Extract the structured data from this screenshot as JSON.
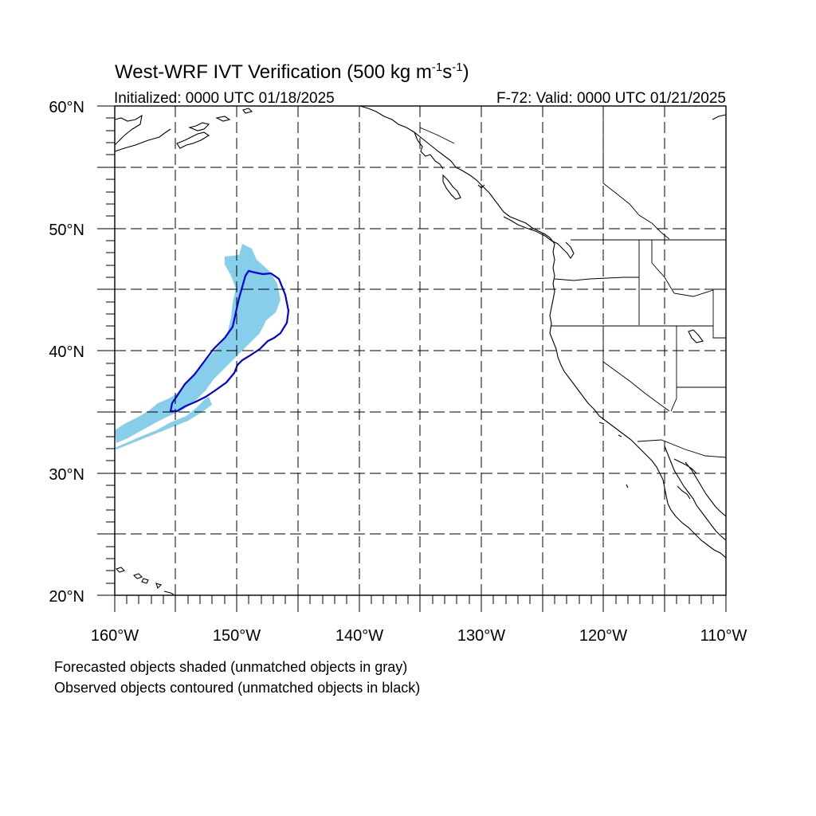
{
  "title": "West-WRF IVT Verification (500 kg m",
  "title_sup1": "-1",
  "title_mid": "s",
  "title_sup2": "-1",
  "title_end": ")",
  "init_label": "Initialized: 0000 UTC 01/18/2025",
  "valid_label": "F-72: Valid: 0000 UTC 01/21/2025",
  "lat_labels": [
    "60°N",
    "50°N",
    "40°N",
    "30°N",
    "20°N"
  ],
  "lon_labels": [
    "160°W",
    "150°W",
    "140°W",
    "130°W",
    "120°W",
    "110°W"
  ],
  "footnote_1": "Forecasted objects shaded (unmatched objects in gray)",
  "footnote_2": "Observed objects contoured (unmatched objects in black)",
  "colors": {
    "forecast_fill": "#87ceeb",
    "observed_contour": "#0000e6",
    "coastline": "#000000",
    "grid": "#000000"
  },
  "map_extent": {
    "lon_min": -160,
    "lon_max": -110,
    "lat_min": 20,
    "lat_max": 60
  }
}
